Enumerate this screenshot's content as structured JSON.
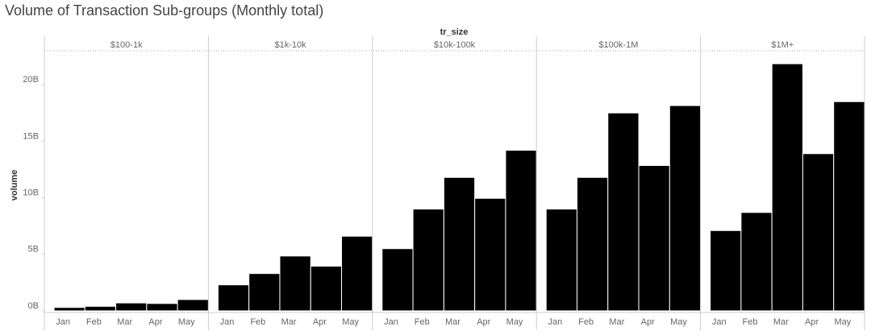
{
  "chart_data": {
    "type": "bar",
    "title": "Volume of Transaction Sub-groups (Monthly total)",
    "facet_label": "tr_size",
    "y_label": "volume",
    "categories": [
      "Jan",
      "Feb",
      "Mar",
      "Apr",
      "May"
    ],
    "color": "#000000",
    "facets": [
      {
        "name": "$100-1k",
        "values": [
          0.3,
          0.4,
          0.7,
          0.65,
          1.0
        ]
      },
      {
        "name": "$1k-10k",
        "values": [
          2.3,
          3.3,
          4.85,
          3.95,
          6.6
        ]
      },
      {
        "name": "$10k-100k",
        "values": [
          5.5,
          9.0,
          11.8,
          9.95,
          14.2
        ]
      },
      {
        "name": "$100k-1M",
        "values": [
          9.0,
          11.8,
          17.5,
          12.85,
          18.15
        ]
      },
      {
        "name": "$1M+",
        "values": [
          7.1,
          8.7,
          21.85,
          13.9,
          18.5
        ]
      }
    ],
    "ylim": [
      0,
      23
    ],
    "yticks": [
      {
        "value": 0,
        "label": "0B"
      },
      {
        "value": 5,
        "label": "5B"
      },
      {
        "value": 10,
        "label": "10B"
      },
      {
        "value": 15,
        "label": "15B"
      },
      {
        "value": 20,
        "label": "20B"
      }
    ]
  }
}
